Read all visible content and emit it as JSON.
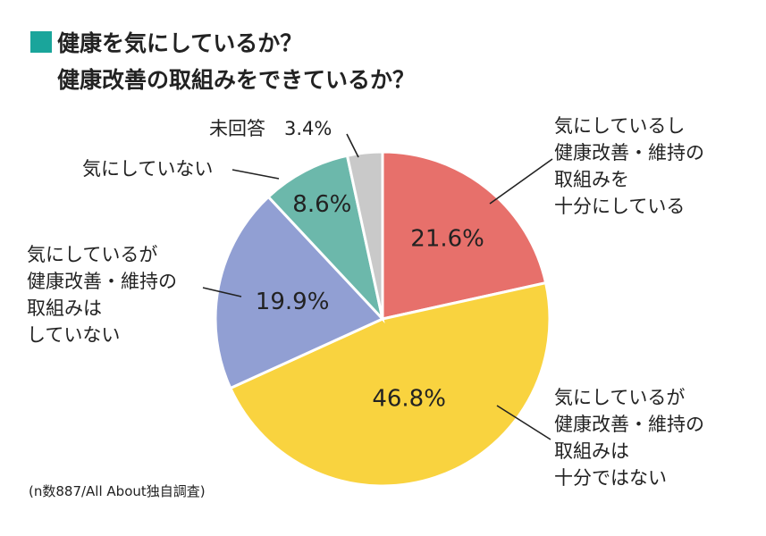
{
  "title_lines": [
    "健康を気にしているか？",
    "健康改善の取組みをできているか？"
  ],
  "note": "(n数887/All About独自調査)",
  "chart_data": {
    "type": "pie",
    "title": "健康を気にしているか？ 健康改善の取組みをできているか？",
    "slices": [
      {
        "value": 21.6,
        "value_label": "21.6%",
        "color": "#e7706b",
        "label_lines": [
          "気にしているし",
          "健康改善・維持の",
          "取組みを",
          "十分にしている"
        ]
      },
      {
        "value": 46.8,
        "value_label": "46.8%",
        "color": "#f9d33f",
        "label_lines": [
          "気にしているが",
          "健康改善・維持の",
          "取組みは",
          "十分ではない"
        ]
      },
      {
        "value": 19.9,
        "value_label": "19.9%",
        "color": "#919fd3",
        "label_lines": [
          "気にしているが",
          "健康改善・維持の",
          "取組みは",
          "していない"
        ]
      },
      {
        "value": 8.6,
        "value_label": "8.6%",
        "color": "#6cb8ab",
        "label_lines": [
          "気にしていない"
        ]
      },
      {
        "value": 3.4,
        "value_label": "3.4%",
        "color": "#c9c9c9",
        "label_lines": [
          "未回答"
        ]
      }
    ]
  }
}
